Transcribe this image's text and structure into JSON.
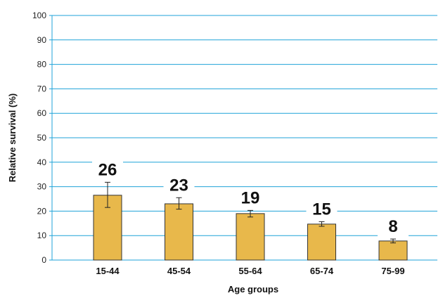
{
  "chart_data": {
    "type": "bar",
    "categories": [
      "15-44",
      "45-54",
      "55-64",
      "65-74",
      "75-99"
    ],
    "values": [
      26.5,
      23,
      19,
      14.7,
      7.8
    ],
    "data_labels": [
      "26",
      "23",
      "19",
      "15",
      "8"
    ],
    "error_low": [
      21.5,
      20.8,
      17.6,
      13.8,
      7.0
    ],
    "error_high": [
      31.8,
      25.5,
      20.3,
      15.7,
      8.6
    ],
    "xlabel": "Age groups",
    "ylabel": "Relative survival (%)",
    "ylim": [
      0,
      100
    ],
    "yticks": [
      "0",
      "10",
      "20",
      "30",
      "40",
      "50",
      "60",
      "70",
      "80",
      "90",
      "100"
    ],
    "grid": true,
    "colors": {
      "bar": "#e8b84b",
      "bar_stroke": "#333333",
      "grid": "#1fa3d8",
      "axis": "#1fa3d8"
    }
  }
}
